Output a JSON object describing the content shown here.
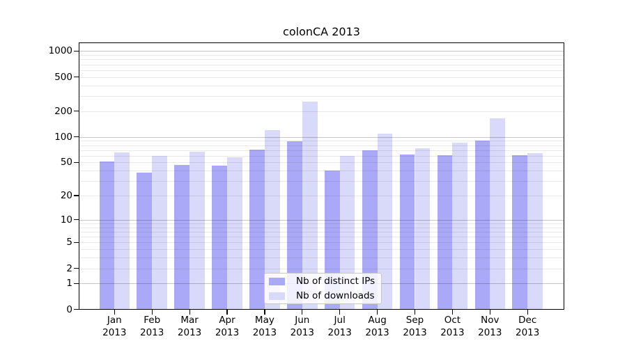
{
  "title": "colonCA 2013",
  "legend": {
    "items": [
      {
        "label": "Nb of distinct IPs",
        "color": "#a9a9f7"
      },
      {
        "label": "Nb of downloads",
        "color": "#d9d9fa"
      }
    ]
  },
  "colors": {
    "bar_distinct_ips": "#a9a9f7",
    "bar_downloads": "#d9d9fa",
    "grid_major": "#c9c9c9",
    "grid_minor": "#e9e9e9",
    "frame": "#000000",
    "background": "#ffffff",
    "text": "#000000"
  },
  "chart_data": {
    "type": "bar",
    "title": "colonCA 2013",
    "categories": [
      "Jan",
      "Feb",
      "Mar",
      "Apr",
      "May",
      "Jun",
      "Jul",
      "Aug",
      "Sep",
      "Oct",
      "Nov",
      "Dec"
    ],
    "category_year": "2013",
    "series": [
      {
        "name": "Nb of distinct IPs",
        "color": "#a9a9f7",
        "values": [
          51,
          38,
          47,
          46,
          71,
          88,
          40,
          69,
          62,
          61,
          90,
          61
        ]
      },
      {
        "name": "Nb of downloads",
        "color": "#d9d9fa",
        "values": [
          66,
          60,
          67,
          57,
          120,
          260,
          60,
          110,
          73,
          85,
          164,
          65
        ]
      }
    ],
    "y_scale": "log1p",
    "y_ticks": [
      0,
      1,
      2,
      5,
      10,
      20,
      50,
      100,
      200,
      500,
      1000
    ],
    "ylim": [
      0,
      1260
    ],
    "grid": {
      "major": [
        1,
        10,
        100,
        1000
      ],
      "minor": [
        2,
        3,
        4,
        5,
        6,
        7,
        8,
        9,
        20,
        30,
        40,
        50,
        60,
        70,
        80,
        90,
        200,
        300,
        400,
        500,
        600,
        700,
        800,
        900
      ]
    },
    "xlabel": "",
    "ylabel": "",
    "legend_position": "bottom-center"
  }
}
